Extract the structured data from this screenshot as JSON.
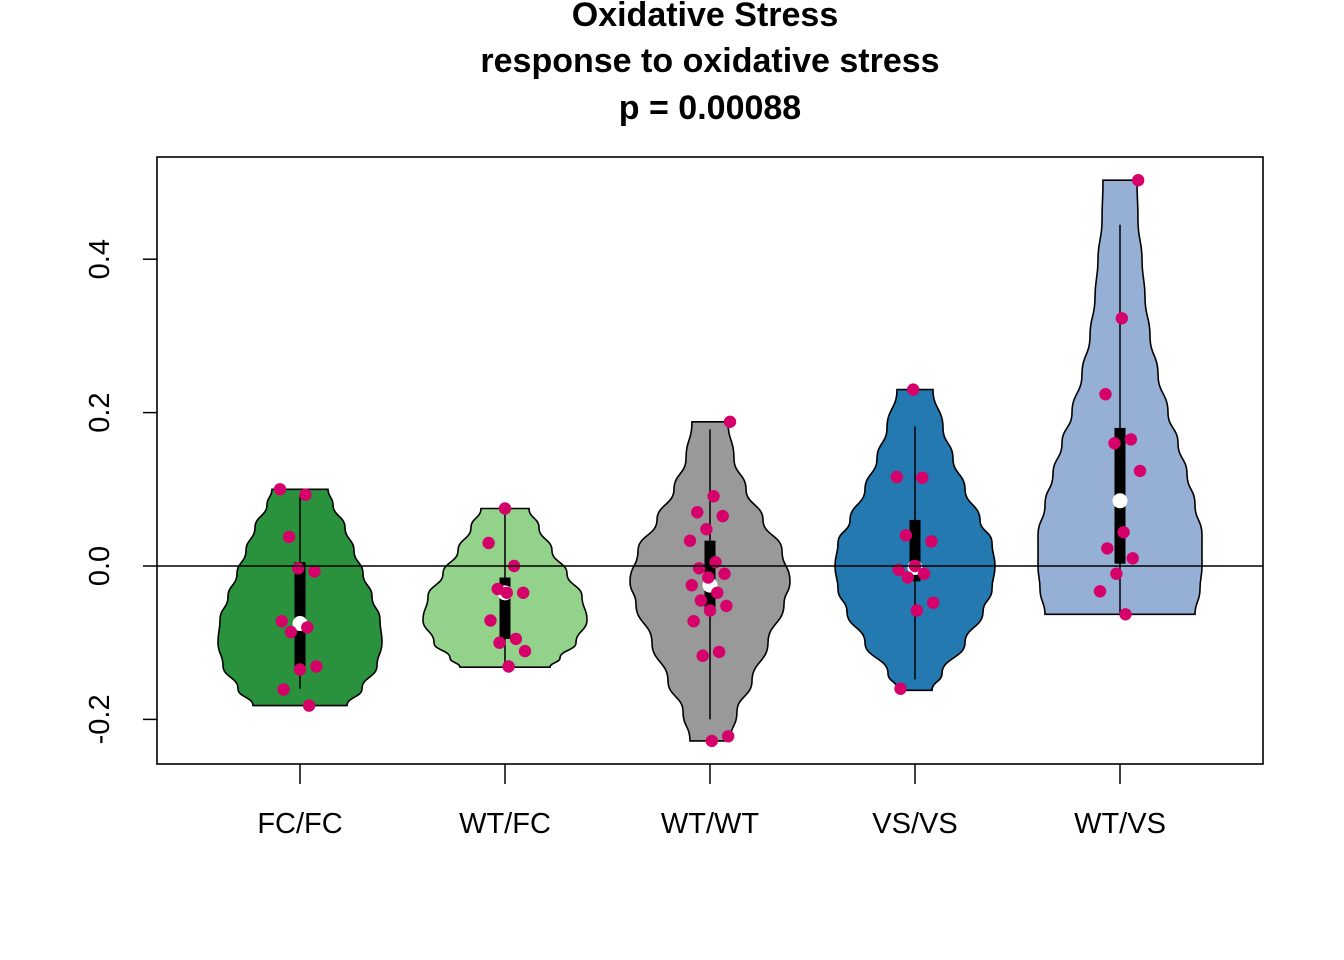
{
  "chart_data": {
    "type": "violin",
    "title_lines": [
      "Oxidative Stress",
      "response to oxidative stress",
      "p = 0.00088"
    ],
    "categories": [
      "FC/FC",
      "WT/FC",
      "WT/WT",
      "VS/VS",
      "WT/VS"
    ],
    "ylim": [
      -0.25,
      0.52
    ],
    "yticks": [
      -0.2,
      0.0,
      0.2,
      0.4
    ],
    "ytick_labels": [
      "-0.2",
      "0.0",
      "0.2",
      "0.4"
    ],
    "reference_line_y": 0,
    "grid": false,
    "point_color": "#d6006b",
    "median_color": "#ffffff",
    "groups": [
      {
        "name": "FC/FC",
        "color": "#2a913d",
        "min": -0.182,
        "max": 0.1,
        "whisker": [
          -0.16,
          0.093
        ],
        "q1": -0.131,
        "q3": 0.005,
        "median": -0.075,
        "density": [
          [
            -0.182,
            0.47
          ],
          [
            -0.16,
            0.62
          ],
          [
            -0.13,
            0.77
          ],
          [
            -0.1,
            0.82
          ],
          [
            -0.07,
            0.8
          ],
          [
            -0.04,
            0.72
          ],
          [
            -0.01,
            0.63
          ],
          [
            0.02,
            0.54
          ],
          [
            0.05,
            0.45
          ],
          [
            0.08,
            0.33
          ],
          [
            0.1,
            0.28
          ]
        ],
        "points": [
          0.1,
          0.093,
          0.038,
          -0.007,
          -0.003,
          -0.072,
          -0.08,
          -0.086,
          -0.131,
          -0.135,
          -0.161,
          -0.182
        ]
      },
      {
        "name": "WT/FC",
        "color": "#93d28a",
        "min": -0.132,
        "max": 0.075,
        "whisker": [
          -0.132,
          0.075
        ],
        "q1": -0.095,
        "q3": -0.015,
        "median": -0.035,
        "density": [
          [
            -0.132,
            0.45
          ],
          [
            -0.12,
            0.55
          ],
          [
            -0.1,
            0.71
          ],
          [
            -0.07,
            0.82
          ],
          [
            -0.04,
            0.77
          ],
          [
            -0.01,
            0.62
          ],
          [
            0.02,
            0.47
          ],
          [
            0.05,
            0.34
          ],
          [
            0.075,
            0.24
          ]
        ],
        "points": [
          0.075,
          0.03,
          0.0,
          -0.03,
          -0.035,
          -0.035,
          -0.071,
          -0.095,
          -0.1,
          -0.111,
          -0.131
        ]
      },
      {
        "name": "WT/WT",
        "color": "#999999",
        "min": -0.228,
        "max": 0.188,
        "whisker": [
          -0.2,
          0.178
        ],
        "q1": -0.06,
        "q3": 0.033,
        "median": -0.025,
        "density": [
          [
            -0.228,
            0.2
          ],
          [
            -0.19,
            0.27
          ],
          [
            -0.15,
            0.42
          ],
          [
            -0.1,
            0.58
          ],
          [
            -0.05,
            0.74
          ],
          [
            -0.02,
            0.8
          ],
          [
            0.02,
            0.72
          ],
          [
            0.06,
            0.53
          ],
          [
            0.1,
            0.36
          ],
          [
            0.14,
            0.24
          ],
          [
            0.188,
            0.18
          ]
        ],
        "points": [
          0.188,
          0.091,
          0.07,
          0.065,
          0.048,
          0.033,
          0.005,
          -0.003,
          -0.01,
          -0.015,
          -0.025,
          -0.035,
          -0.045,
          -0.052,
          -0.058,
          -0.072,
          -0.112,
          -0.117,
          -0.222,
          -0.228
        ]
      },
      {
        "name": "VS/VS",
        "color": "#2479b0",
        "min": -0.162,
        "max": 0.23,
        "whisker": [
          -0.148,
          0.182
        ],
        "q1": -0.02,
        "q3": 0.06,
        "median": -0.002,
        "density": [
          [
            -0.162,
            0.17
          ],
          [
            -0.14,
            0.27
          ],
          [
            -0.1,
            0.5
          ],
          [
            -0.06,
            0.68
          ],
          [
            -0.03,
            0.77
          ],
          [
            0.0,
            0.8
          ],
          [
            0.03,
            0.77
          ],
          [
            0.06,
            0.65
          ],
          [
            0.1,
            0.5
          ],
          [
            0.14,
            0.38
          ],
          [
            0.18,
            0.28
          ],
          [
            0.23,
            0.18
          ]
        ],
        "points": [
          0.23,
          0.116,
          0.115,
          0.04,
          0.032,
          0.0,
          -0.005,
          -0.01,
          -0.015,
          -0.048,
          -0.058,
          -0.16
        ]
      },
      {
        "name": "WT/VS",
        "color": "#96afd4",
        "min": -0.063,
        "max": 0.503,
        "whisker": [
          -0.063,
          0.445
        ],
        "q1": 0.003,
        "q3": 0.18,
        "median": 0.085,
        "density": [
          [
            -0.063,
            0.75
          ],
          [
            -0.03,
            0.8
          ],
          [
            0.0,
            0.82
          ],
          [
            0.04,
            0.82
          ],
          [
            0.08,
            0.75
          ],
          [
            0.12,
            0.67
          ],
          [
            0.16,
            0.58
          ],
          [
            0.2,
            0.48
          ],
          [
            0.25,
            0.38
          ],
          [
            0.3,
            0.3
          ],
          [
            0.35,
            0.25
          ],
          [
            0.4,
            0.22
          ],
          [
            0.45,
            0.18
          ],
          [
            0.503,
            0.17
          ]
        ],
        "points": [
          0.503,
          0.323,
          0.224,
          0.165,
          0.16,
          0.124,
          0.044,
          0.023,
          0.01,
          -0.01,
          -0.033,
          -0.063
        ]
      }
    ]
  }
}
